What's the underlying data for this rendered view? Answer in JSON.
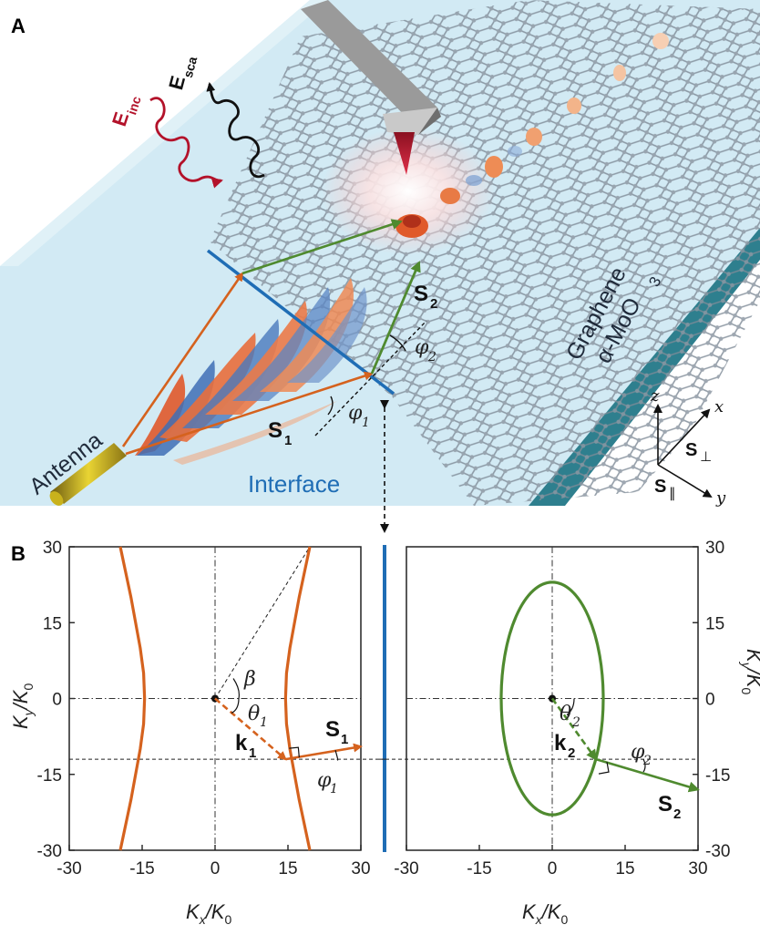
{
  "panel_a": {
    "letter": "A",
    "e_inc": "E",
    "e_inc_sub": "inc",
    "e_sca": "E",
    "e_sca_sub": "sca",
    "s2": "S",
    "s2_sub": "2",
    "s1": "S",
    "s1_sub": "1",
    "phi2": "φ",
    "phi2_sub": "2",
    "phi1": "φ",
    "phi1_sub": "1",
    "graphene": "Graphene",
    "moo3": "α-MoO",
    "moo3_sub": "3",
    "antenna": "Antenna",
    "interface": "Interface",
    "axis_z": "z",
    "axis_x": "x",
    "axis_y": "y",
    "s_perp": "S",
    "s_perp_sub": "⊥",
    "s_par": "S",
    "s_par_sub": "∥",
    "colors": {
      "substrate": "#cfe9f3",
      "orange_vector": "#d5621e",
      "green_vector": "#4f8a2f",
      "interface_line": "#1f6db5",
      "e_inc_wave": "#b3122a",
      "e_sca_wave": "#111111"
    }
  },
  "panel_b": {
    "letter": "B",
    "left_plot": {
      "xlabel": "K",
      "xlabel_sub": "x",
      "xlabel_den": "/K",
      "xlabel_den_sub": "0",
      "ylabel": "K",
      "ylabel_sub": "y",
      "ylabel_den": "/K",
      "ylabel_den_sub": "0",
      "k_label": "k",
      "k_sub": "1",
      "s_label": "S",
      "s_sub": "1",
      "theta": "θ",
      "theta_sub": "1",
      "beta": "β",
      "phi": "φ",
      "phi_sub": "1"
    },
    "right_plot": {
      "xlabel": "K",
      "xlabel_sub": "x",
      "xlabel_den": "/K",
      "xlabel_den_sub": "0",
      "ylabel": "K",
      "ylabel_sub": "y",
      "ylabel_den": "/K",
      "ylabel_den_sub": "0",
      "k_label": "k",
      "k_sub": "2",
      "s_label": "S",
      "s_sub": "2",
      "theta": "θ",
      "theta_sub": "2",
      "phi": "φ",
      "phi_sub": "2"
    }
  },
  "chart_data": [
    {
      "type": "line",
      "title": "",
      "xlabel": "Kx/K0",
      "ylabel": "Ky/K0",
      "xlim": [
        -30,
        30
      ],
      "ylim": [
        -30,
        30
      ],
      "xticks": [
        "-30",
        "-15",
        "0",
        "15",
        "30"
      ],
      "yticks": [
        "30",
        "15",
        "0",
        "-15",
        "-30"
      ],
      "grid": false,
      "series": [
        {
          "name": "",
          "color": "#d5621e",
          "points": [
            [
              -19.5,
              30
            ],
            [
              -17.3,
              20
            ],
            [
              -15.4,
              10
            ],
            [
              -14.7,
              5
            ],
            [
              -14.5,
              0
            ],
            [
              -14.7,
              -5
            ],
            [
              -15.4,
              -10
            ],
            [
              -17.3,
              -20
            ],
            [
              -19.5,
              -30
            ]
          ]
        },
        {
          "name": "",
          "color": "#d5621e",
          "points": [
            [
              19.5,
              30
            ],
            [
              17.3,
              20
            ],
            [
              15.4,
              10
            ],
            [
              14.7,
              5
            ],
            [
              14.5,
              0
            ],
            [
              14.7,
              -5
            ],
            [
              15.4,
              -10
            ],
            [
              17.3,
              -20
            ],
            [
              19.5,
              -30
            ]
          ]
        }
      ],
      "vectors": {
        "k1": {
          "from": [
            0,
            0
          ],
          "to": [
            14.5,
            -12
          ]
        },
        "S1": {
          "from": [
            14.5,
            -12
          ],
          "to": [
            30,
            -9.5
          ]
        }
      },
      "reference_lines": {
        "horizontal_y": -12,
        "diagonal_to": [
          19.5,
          30
        ]
      }
    },
    {
      "type": "line",
      "title": "",
      "xlabel": "Kx/K0",
      "ylabel": "Ky/K0",
      "xlim": [
        -30,
        30
      ],
      "ylim": [
        -30,
        30
      ],
      "xticks": [
        "-30",
        "-15",
        "0",
        "15",
        "30"
      ],
      "yticks": [
        "30",
        "15",
        "0",
        "-15",
        "-30"
      ],
      "grid": false,
      "series": [
        {
          "name": "",
          "color": "#4f8a2f",
          "ellipse": {
            "center": [
              0,
              0
            ],
            "semi_x": 10.5,
            "semi_y": 23
          }
        }
      ],
      "vectors": {
        "k2": {
          "from": [
            0,
            0
          ],
          "to": [
            9,
            -12
          ]
        },
        "S2": {
          "from": [
            9,
            -12
          ],
          "to": [
            30,
            -18
          ]
        }
      },
      "reference_lines": {
        "horizontal_y": -12
      }
    }
  ]
}
